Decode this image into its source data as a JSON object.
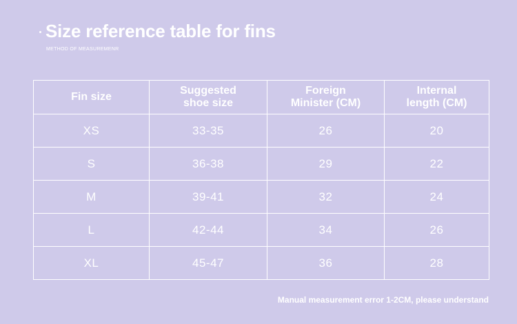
{
  "header": {
    "title": "Size reference table for fins",
    "subtitle": "METHOD OF MEASUREMENR"
  },
  "table": {
    "columns": [
      {
        "line1": "Fin size",
        "line2": ""
      },
      {
        "line1": "Suggested",
        "line2": "shoe size"
      },
      {
        "line1": "Foreign",
        "line2": "Minister (CM)"
      },
      {
        "line1": "Internal",
        "line2": "length (CM)"
      }
    ],
    "rows": [
      [
        "XS",
        "33-35",
        "26",
        "20"
      ],
      [
        "S",
        "36-38",
        "29",
        "22"
      ],
      [
        "M",
        "39-41",
        "32",
        "24"
      ],
      [
        "L",
        "42-44",
        "34",
        "26"
      ],
      [
        "XL",
        "45-47",
        "36",
        "28"
      ]
    ]
  },
  "footer": {
    "note": "Manual measurement error 1-2CM, please understand"
  },
  "colors": {
    "background": "#cfcaea",
    "text": "#ffffff"
  }
}
